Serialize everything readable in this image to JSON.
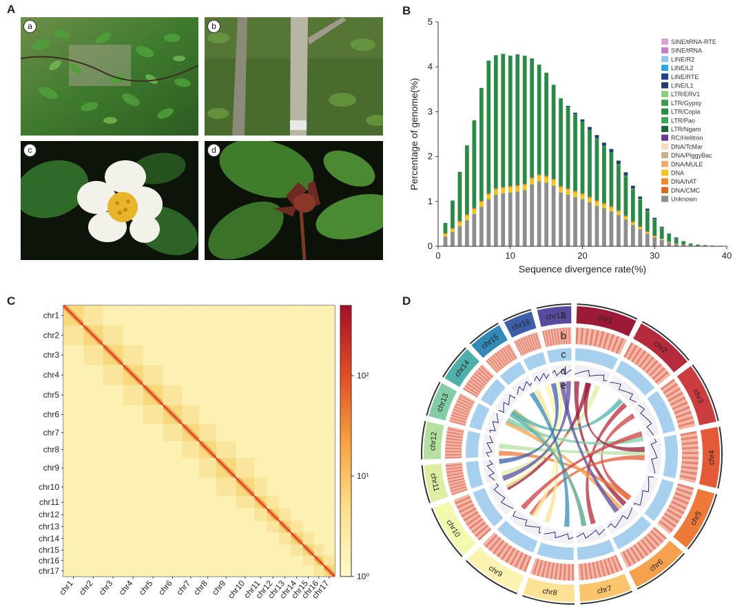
{
  "panels": {
    "A": {
      "label": "A",
      "photos": [
        "a",
        "b",
        "c",
        "d"
      ]
    },
    "B": {
      "label": "B"
    },
    "C": {
      "label": "C"
    },
    "D": {
      "label": "D"
    }
  },
  "chart_data": [
    {
      "type": "bar",
      "stacked": true,
      "xlabel": "Sequence divergence rate(%)",
      "ylabel": "Percentage of genome(%)",
      "xlim": [
        0,
        40
      ],
      "ylim": [
        0,
        5
      ],
      "xticks": [
        "0",
        "10",
        "20",
        "30",
        "40"
      ],
      "yticks": [
        "0",
        "1",
        "2",
        "3",
        "4",
        "5"
      ],
      "legend_position": "right",
      "legend": [
        {
          "name": "SINE/tRNA-RTE",
          "color": "#d8a6d6"
        },
        {
          "name": "SINE/tRNA",
          "color": "#c77fc4"
        },
        {
          "name": "LINE/R2",
          "color": "#8ec8ec"
        },
        {
          "name": "LINE/L2",
          "color": "#2ea8dc"
        },
        {
          "name": "LINE/RTE",
          "color": "#1f3f86"
        },
        {
          "name": "LINE/L1",
          "color": "#263a70"
        },
        {
          "name": "LTR/ERV1",
          "color": "#8fcc7a"
        },
        {
          "name": "LTR/Gypsy",
          "color": "#3e9e4e"
        },
        {
          "name": "LTR/Copia",
          "color": "#2c8a47"
        },
        {
          "name": "LTR/Pao",
          "color": "#38a854"
        },
        {
          "name": "LTR/Ngaro",
          "color": "#19643a"
        },
        {
          "name": "RC/Helitron",
          "color": "#6b3b9a"
        },
        {
          "name": "DNA/TcMar",
          "color": "#f3dcbc"
        },
        {
          "name": "DNA/PiggyBac",
          "color": "#c9b08a"
        },
        {
          "name": "DNA/MULE",
          "color": "#f0ac70"
        },
        {
          "name": "DNA",
          "color": "#f3c61e"
        },
        {
          "name": "DNA/hAT",
          "color": "#ef8b23"
        },
        {
          "name": "DNA/CMC",
          "color": "#d86a25"
        },
        {
          "name": "Unknown",
          "color": "#8e8e8e"
        }
      ],
      "x": [
        1,
        2,
        3,
        4,
        5,
        6,
        7,
        8,
        9,
        10,
        11,
        12,
        13,
        14,
        15,
        16,
        17,
        18,
        19,
        20,
        21,
        22,
        23,
        24,
        25,
        26,
        27,
        28,
        29,
        30,
        31,
        32,
        33,
        34,
        35,
        36,
        37,
        38,
        39,
        40
      ],
      "series": [
        {
          "name": "Unknown",
          "values": [
            0.22,
            0.32,
            0.45,
            0.58,
            0.72,
            0.88,
            1.05,
            1.15,
            1.18,
            1.2,
            1.22,
            1.25,
            1.38,
            1.45,
            1.42,
            1.35,
            1.2,
            1.15,
            1.1,
            1.05,
            0.98,
            0.9,
            0.85,
            0.78,
            0.7,
            0.6,
            0.48,
            0.38,
            0.28,
            0.2,
            0.14,
            0.08,
            0.05,
            0.03,
            0.02,
            0.01,
            0.01,
            0.005,
            0.003,
            0.002
          ]
        },
        {
          "name": "DNA",
          "values": [
            0.05,
            0.06,
            0.08,
            0.1,
            0.1,
            0.1,
            0.1,
            0.11,
            0.11,
            0.11,
            0.11,
            0.11,
            0.12,
            0.12,
            0.12,
            0.12,
            0.11,
            0.11,
            0.1,
            0.1,
            0.09,
            0.09,
            0.08,
            0.08,
            0.07,
            0.06,
            0.05,
            0.04,
            0.03,
            0.02,
            0.015,
            0.01,
            0.005,
            0.003,
            0.002,
            0.001,
            0.001,
            0.0,
            0.0,
            0.0
          ]
        },
        {
          "name": "DNA/hAT",
          "values": [
            0.02,
            0.02,
            0.03,
            0.03,
            0.03,
            0.03,
            0.03,
            0.03,
            0.03,
            0.03,
            0.03,
            0.03,
            0.03,
            0.03,
            0.03,
            0.03,
            0.03,
            0.03,
            0.03,
            0.03,
            0.03,
            0.03,
            0.03,
            0.03,
            0.03,
            0.02,
            0.02,
            0.02,
            0.02,
            0.015,
            0.01,
            0.008,
            0.005,
            0.003,
            0.002,
            0.001,
            0.001,
            0.0,
            0.0,
            0.0
          ]
        },
        {
          "name": "LTR/Copia",
          "values": [
            0.23,
            0.62,
            1.1,
            1.54,
            1.96,
            2.52,
            2.96,
            2.97,
            2.97,
            2.91,
            2.92,
            2.86,
            2.66,
            2.45,
            2.3,
            2.1,
            1.96,
            1.82,
            1.72,
            1.6,
            1.5,
            1.38,
            1.26,
            1.18,
            1.0,
            0.88,
            0.72,
            0.6,
            0.45,
            0.35,
            0.24,
            0.16,
            0.12,
            0.07,
            0.04,
            0.025,
            0.015,
            0.01,
            0.008,
            0.005
          ]
        },
        {
          "name": "LTR/Gypsy",
          "values": [
            0.0,
            0.0,
            0.0,
            0.0,
            0.0,
            0.0,
            0.0,
            0.0,
            0.0,
            0.0,
            0.0,
            0.0,
            0.0,
            0.0,
            0.0,
            0.0,
            0.0,
            0.0,
            0.0,
            0.0,
            0.0,
            0.01,
            0.02,
            0.02,
            0.03,
            0.02,
            0.02,
            0.02,
            0.02,
            0.02,
            0.01,
            0.01,
            0.01,
            0.005,
            0.0,
            0.0,
            0.0,
            0.0,
            0.0,
            0.0
          ]
        },
        {
          "name": "LINE/L1",
          "values": [
            0.0,
            0.0,
            0.0,
            0.0,
            0.0,
            0.0,
            0.0,
            0.0,
            0.0,
            0.0,
            0.0,
            0.0,
            0.0,
            0.0,
            0.0,
            0.0,
            0.0,
            0.02,
            0.03,
            0.05,
            0.06,
            0.07,
            0.07,
            0.08,
            0.08,
            0.07,
            0.06,
            0.05,
            0.04,
            0.03,
            0.02,
            0.015,
            0.01,
            0.005,
            0.0,
            0.0,
            0.0,
            0.0,
            0.0,
            0.0
          ]
        }
      ]
    },
    {
      "type": "heatmap",
      "chromosomes": [
        "chr1",
        "chr2",
        "chr3",
        "chr4",
        "chr5",
        "chr6",
        "chr7",
        "chr8",
        "chr9",
        "chr10",
        "chr11",
        "chr12",
        "chr13",
        "chr14",
        "chr15",
        "chr16",
        "chr17"
      ],
      "sizes": [
        1.0,
        0.98,
        1.0,
        1.0,
        1.0,
        0.95,
        0.86,
        0.85,
        0.98,
        0.92,
        0.62,
        0.62,
        0.58,
        0.6,
        0.56,
        0.48,
        0.56
      ],
      "colorbar": {
        "ticks": [
          "10²",
          "10¹",
          "10⁰"
        ],
        "log_scale": true,
        "min": 1,
        "max": 500,
        "colors": [
          "#fff9cc",
          "#fde08a",
          "#f7a13d",
          "#e24a23",
          "#a50f26"
        ]
      }
    }
  ],
  "circos": {
    "track_labels": [
      "a",
      "b",
      "c",
      "d",
      "e"
    ],
    "chromosomes": [
      {
        "name": "chr1",
        "color": "#9b1a35"
      },
      {
        "name": "chr2",
        "color": "#b52a3c"
      },
      {
        "name": "chr3",
        "color": "#cc3d40"
      },
      {
        "name": "chr4",
        "color": "#e45a36"
      },
      {
        "name": "chr5",
        "color": "#ee7a39"
      },
      {
        "name": "chr6",
        "color": "#f5a14d"
      },
      {
        "name": "chr7",
        "color": "#fbc56d"
      },
      {
        "name": "chr8",
        "color": "#fde195"
      },
      {
        "name": "chr9",
        "color": "#fdf3b0"
      },
      {
        "name": "chr10",
        "color": "#f4f9b0"
      },
      {
        "name": "chr11",
        "color": "#dcefa0"
      },
      {
        "name": "chr12",
        "color": "#b5e0a2"
      },
      {
        "name": "chr13",
        "color": "#82cca6"
      },
      {
        "name": "chr14",
        "color": "#4fb0aa"
      },
      {
        "name": "chr15",
        "color": "#3389b8"
      },
      {
        "name": "chr16",
        "color": "#3e5fa8"
      },
      {
        "name": "chr17",
        "color": "#5a4a9e"
      }
    ]
  }
}
